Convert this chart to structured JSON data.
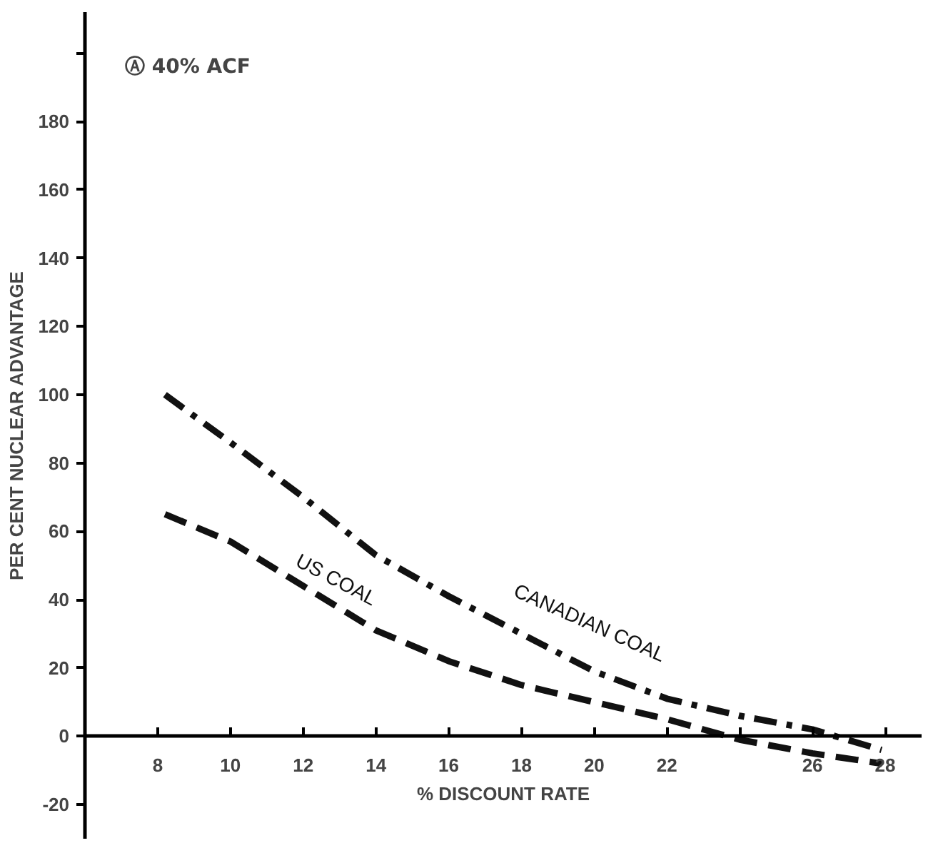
{
  "chart_data": {
    "type": "line",
    "title": "Ⓐ 40% ACF",
    "xlabel": "% DISCOUNT RATE",
    "ylabel": "PER CENT NUCLEAR ADVANTAGE",
    "series": [
      {
        "name": "CANADIAN COAL",
        "color": "#111111",
        "line_style": "dashdot",
        "x": [
          8.2,
          10,
          12,
          14,
          16,
          18,
          20,
          22,
          24,
          26,
          27.9
        ],
        "values": [
          100,
          86,
          70,
          53,
          41,
          30,
          19,
          11,
          6,
          2,
          -4
        ]
      },
      {
        "name": "US COAL",
        "color": "#111111",
        "line_style": "dashed",
        "x": [
          8.2,
          10,
          12,
          14,
          16,
          18,
          20,
          22,
          24,
          26,
          27.9
        ],
        "values": [
          65,
          57,
          44,
          31,
          22,
          15,
          10,
          5,
          -1,
          -5,
          -8
        ]
      }
    ],
    "xlim": [
      6,
      29
    ],
    "ylim": [
      -30,
      212
    ],
    "xticks": [
      8,
      10,
      12,
      14,
      16,
      18,
      20,
      22,
      {
        "value": 24,
        "label": null
      },
      26,
      28
    ],
    "yticks": [
      -20,
      0,
      20,
      40,
      60,
      80,
      100,
      120,
      140,
      160,
      180,
      {
        "value": 200,
        "label": null
      }
    ],
    "grid": false,
    "legend": false,
    "marker": "none"
  }
}
